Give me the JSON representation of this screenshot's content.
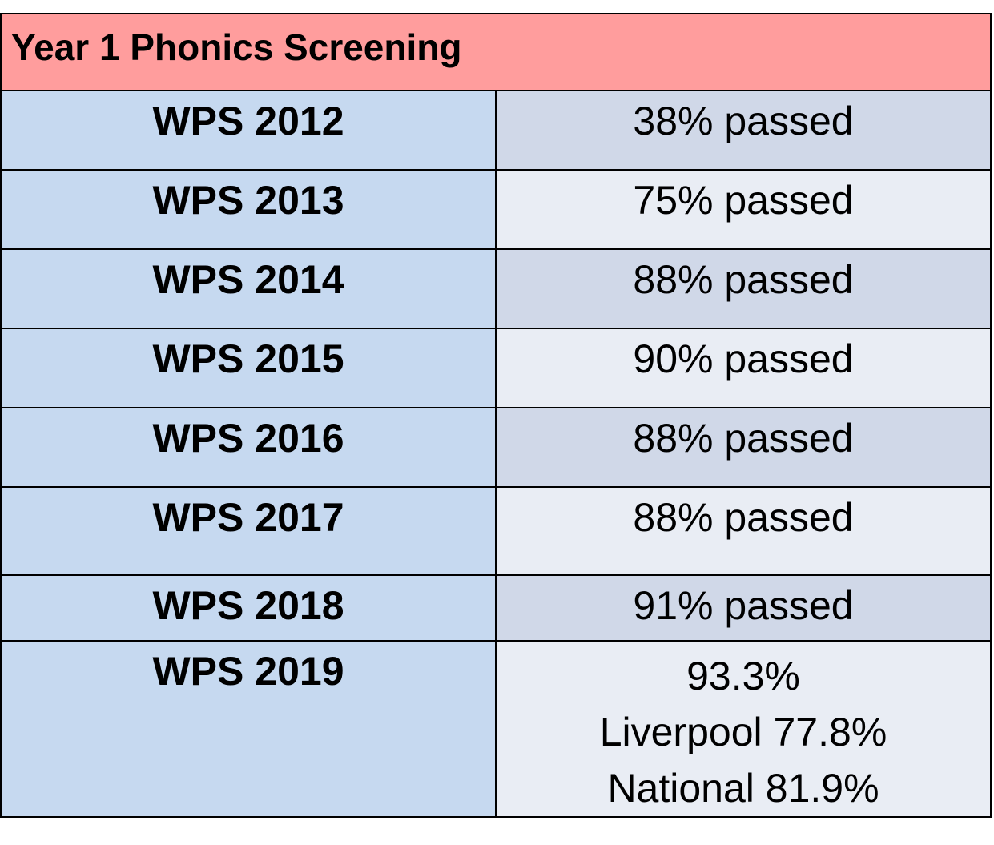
{
  "table": {
    "title": "Year 1 Phonics Screening",
    "rows": [
      {
        "year": "WPS 2012",
        "value": "38% passed"
      },
      {
        "year": "WPS 2013",
        "value": "75% passed"
      },
      {
        "year": "WPS 2014",
        "value": "88% passed"
      },
      {
        "year": "WPS 2015",
        "value": "90% passed"
      },
      {
        "year": "WPS 2016",
        "value": "88% passed"
      },
      {
        "year": "WPS 2017",
        "value": "88% passed"
      },
      {
        "year": "WPS 2018",
        "value": "91% passed"
      },
      {
        "year": "WPS 2019",
        "values": [
          "93.3%",
          "Liverpool 77.8%",
          "National 81.9%"
        ]
      }
    ]
  },
  "colors": {
    "header": "#ff9d9d",
    "year_column": "#c6d9f0",
    "value_dark": "#d0d8e8",
    "value_light": "#e9edf4",
    "border": "#000000"
  }
}
